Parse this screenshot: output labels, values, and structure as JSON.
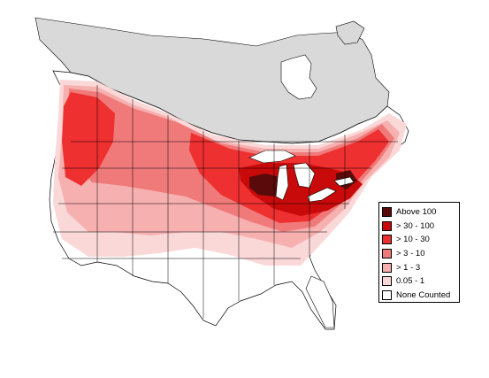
{
  "legend": {
    "items": [
      {
        "label": "Above 100",
        "color": "#5a0a0a"
      },
      {
        "label": "> 30 - 100",
        "color": "#c80a0a"
      },
      {
        "label": "> 10 - 30",
        "color": "#ee3030"
      },
      {
        "label": "> 3 - 10",
        "color": "#f07a7a"
      },
      {
        "label": "> 1 - 3",
        "color": "#f7b0b0"
      },
      {
        "label": "0.05 - 1",
        "color": "#fbd8d8"
      },
      {
        "label": "None Counted",
        "color": "#ffffff"
      }
    ]
  },
  "colors": {
    "no_data_region": "#d9d9d9",
    "water": "#ffffff",
    "boundary": "#000000"
  }
}
